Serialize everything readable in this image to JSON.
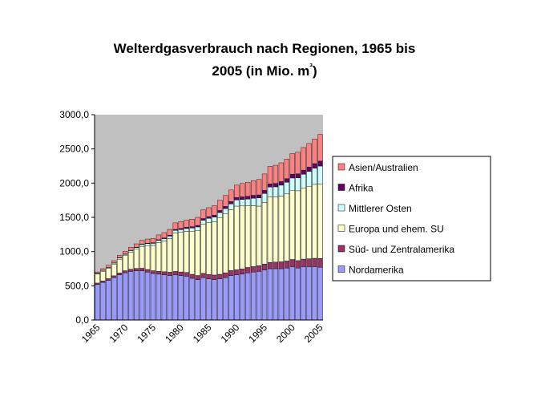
{
  "chart_data": {
    "type": "stacked_bar",
    "title": "Welterdgasverbrauch nach Regionen, 1965 bis 2005 (in Mio. m³)",
    "categories": [
      "1965",
      null,
      null,
      null,
      null,
      "1970",
      null,
      null,
      null,
      null,
      "1975",
      null,
      null,
      null,
      null,
      "1980",
      null,
      null,
      null,
      null,
      "1985",
      null,
      null,
      null,
      null,
      "1990",
      null,
      null,
      null,
      null,
      "1995",
      null,
      null,
      null,
      null,
      "2000",
      null,
      null,
      null,
      null,
      "2005"
    ],
    "series": [
      {
        "name": "Nordamerika",
        "color": "#9999ff",
        "values": [
          520,
          550,
          580,
          620,
          660,
          690,
          710,
          720,
          720,
          700,
          680,
          670,
          660,
          650,
          660,
          650,
          640,
          610,
          590,
          620,
          600,
          590,
          600,
          620,
          650,
          660,
          670,
          690,
          700,
          710,
          730,
          750,
          750,
          750,
          760,
          780,
          760,
          780,
          780,
          780,
          770
        ]
      },
      {
        "name": "Süd- und Zentralamerika",
        "color": "#993366",
        "values": [
          20,
          22,
          24,
          26,
          28,
          30,
          32,
          34,
          36,
          38,
          40,
          42,
          45,
          48,
          50,
          52,
          55,
          58,
          60,
          62,
          65,
          67,
          68,
          70,
          72,
          74,
          76,
          78,
          80,
          84,
          88,
          92,
          96,
          100,
          102,
          105,
          108,
          110,
          115,
          122,
          130
        ]
      },
      {
        "name": "Europa und ehem. SU",
        "color": "#ffffcc",
        "values": [
          130,
          140,
          150,
          170,
          200,
          220,
          250,
          280,
          320,
          350,
          370,
          420,
          450,
          490,
          560,
          580,
          600,
          630,
          660,
          720,
          760,
          780,
          830,
          860,
          890,
          930,
          920,
          900,
          890,
          870,
          900,
          960,
          950,
          960,
          980,
          1010,
          1020,
          1040,
          1060,
          1080,
          1090
        ]
      },
      {
        "name": "Mittlerer Osten",
        "color": "#ccffff",
        "values": [
          10,
          12,
          14,
          16,
          18,
          20,
          22,
          24,
          26,
          28,
          30,
          32,
          34,
          38,
          40,
          40,
          42,
          46,
          50,
          56,
          60,
          66,
          72,
          78,
          84,
          90,
          95,
          100,
          110,
          120,
          130,
          140,
          150,
          160,
          170,
          180,
          190,
          200,
          215,
          235,
          260
        ]
      },
      {
        "name": "Afrika",
        "color": "#660066",
        "values": [
          2,
          2,
          3,
          3,
          4,
          4,
          5,
          5,
          6,
          7,
          8,
          9,
          10,
          12,
          14,
          16,
          18,
          20,
          22,
          24,
          26,
          28,
          30,
          32,
          34,
          36,
          38,
          40,
          42,
          44,
          46,
          48,
          50,
          52,
          54,
          56,
          58,
          60,
          64,
          68,
          72
        ]
      },
      {
        "name": "Asien/Australien",
        "color": "#ff8080",
        "values": [
          20,
          24,
          28,
          32,
          36,
          40,
          45,
          50,
          55,
          60,
          65,
          70,
          78,
          86,
          95,
          100,
          105,
          110,
          118,
          128,
          130,
          140,
          150,
          160,
          170,
          180,
          195,
          205,
          215,
          225,
          240,
          255,
          265,
          275,
          285,
          300,
          315,
          330,
          345,
          360,
          390
        ]
      }
    ],
    "ylim": [
      0,
      3000
    ],
    "yticks": [
      {
        "value": 0,
        "label": "0,0"
      },
      {
        "value": 500,
        "label": "500,0"
      },
      {
        "value": 1000,
        "label": "1000,0"
      },
      {
        "value": 1500,
        "label": "1500,0"
      },
      {
        "value": 2000,
        "label": "2000,0"
      },
      {
        "value": 2500,
        "label": "2500,0"
      },
      {
        "value": 3000,
        "label": "3000,0"
      }
    ],
    "plot_background": "#c0c0c0"
  }
}
